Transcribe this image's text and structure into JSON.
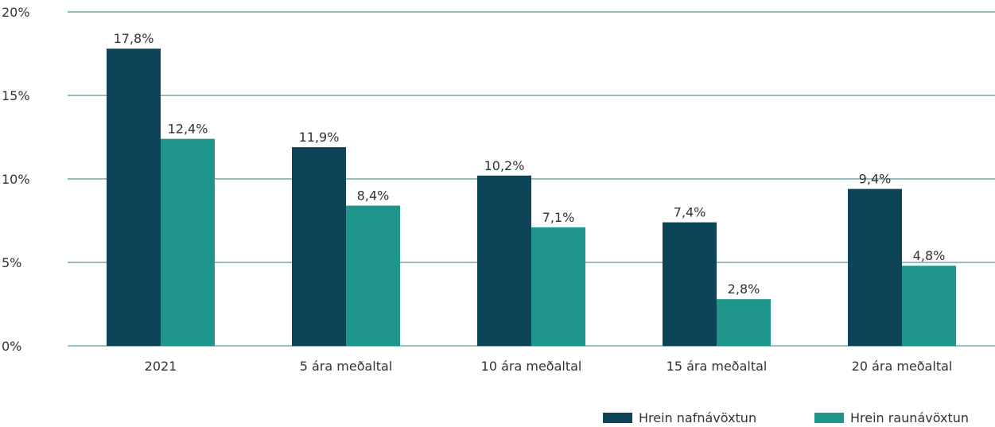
{
  "chart_data": {
    "type": "bar",
    "title": "",
    "xlabel": "",
    "ylabel": "",
    "ylim": [
      0,
      20
    ],
    "yticks": [
      0,
      5,
      10,
      15,
      20
    ],
    "ytick_labels": [
      "0%",
      "5%",
      "10%",
      "15%",
      "20%"
    ],
    "grid": true,
    "legend_position": "bottom-right",
    "categories": [
      "2021",
      "5 ára meðaltal",
      "10 ára meðaltal",
      "15 ára meðaltal",
      "20 ára meðaltal"
    ],
    "series": [
      {
        "name": "Hrein nafnávöxtun",
        "color": "#0d4458",
        "values": [
          17.8,
          11.9,
          10.2,
          7.4,
          9.4
        ],
        "labels": [
          "17,8%",
          "11,9%",
          "10,2%",
          "7,4%",
          "9,4%"
        ]
      },
      {
        "name": "Hrein raunávöxtun",
        "color": "#1f968b",
        "values": [
          12.4,
          8.4,
          7.1,
          2.8,
          4.8
        ],
        "labels": [
          "12,4%",
          "8,4%",
          "7,1%",
          "2,8%",
          "4,8%"
        ]
      }
    ],
    "gridline_color": "#2a7f7c",
    "baseline_color": "#1f968b"
  }
}
